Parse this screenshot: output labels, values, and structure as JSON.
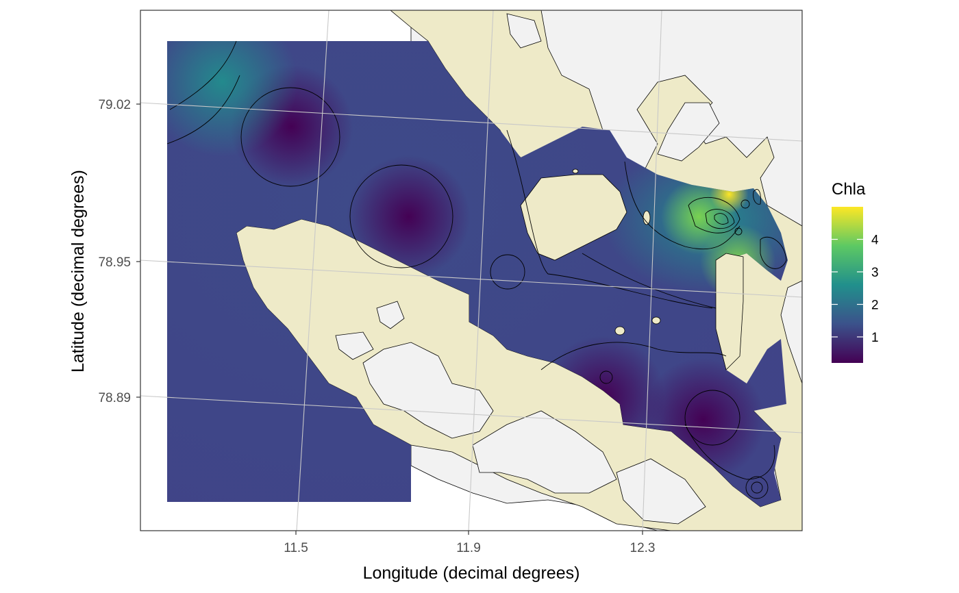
{
  "chart_data": {
    "type": "heatmap",
    "xlabel": "Longitude (decimal degrees)",
    "ylabel": "Latitude (decimal degrees)",
    "x_ticks": [
      "11.5",
      "11.9",
      "12.3"
    ],
    "y_ticks": [
      "79.02",
      "78.95",
      "78.89"
    ],
    "legend": {
      "title": "Chla",
      "labels": [
        "1",
        "2",
        "3",
        "4"
      ],
      "range": [
        0.2,
        5.0
      ],
      "placement": "right",
      "colors": [
        "#440154",
        "#3b528b",
        "#21908c",
        "#5dc963",
        "#fde725"
      ]
    },
    "grid": true,
    "hotspots": [
      {
        "lon": 11.49,
        "lat": 79.01,
        "chla": 0.55
      },
      {
        "lon": 11.76,
        "lat": 78.97,
        "chla": 0.5
      },
      {
        "lon": 11.33,
        "lat": 79.03,
        "chla": 1.8
      },
      {
        "lon": 12.43,
        "lat": 78.97,
        "chla": 3.9
      },
      {
        "lon": 12.5,
        "lat": 78.98,
        "chla": 4.6
      },
      {
        "lon": 12.52,
        "lat": 78.95,
        "chla": 3.1
      },
      {
        "lon": 12.44,
        "lat": 78.88,
        "chla": 0.4
      },
      {
        "lon": 12.21,
        "lat": 78.89,
        "chla": 0.6
      }
    ],
    "colors": {
      "land": "#eeeac8",
      "glacier": "#f2f2f2",
      "contour": "#000000",
      "gridline": "#c8c8c8"
    }
  }
}
